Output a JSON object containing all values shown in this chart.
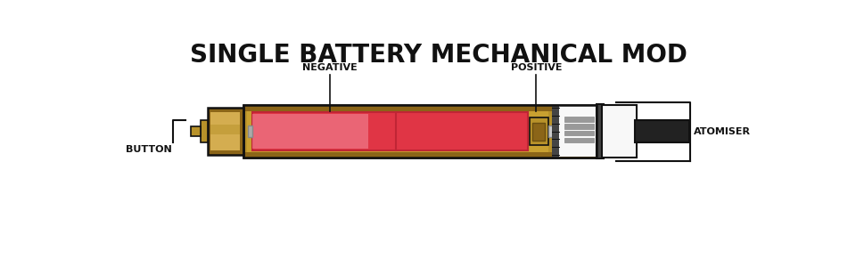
{
  "title": "SINGLE BATTERY MECHANICAL MOD",
  "title_fontsize": 20,
  "bg_color": "#ffffff",
  "label_negative": "NEGATIVE",
  "label_positive": "POSITIVE",
  "label_button": "BUTTON",
  "label_atomiser": "ATOMISER",
  "label_fontsize": 8,
  "colors": {
    "brass_dark": "#6B4F10",
    "brass": "#8B6518",
    "brass_light": "#B8922A",
    "brass_lighter": "#D4AD50",
    "battery_red": "#E03545",
    "battery_red_light": "#F08090",
    "battery_red_dark": "#C02535",
    "tube_wall": "#9A7820",
    "silver": "#AAAAAA",
    "silver_light": "#CCCCCC",
    "silver_dark": "#888888",
    "dark_gray": "#444444",
    "black": "#111111",
    "white": "#F8F8F8",
    "light_gray": "#DDDDDD",
    "mid_gray": "#999999",
    "atomiser_dark": "#222222",
    "tube_bg": "#C8A030"
  }
}
